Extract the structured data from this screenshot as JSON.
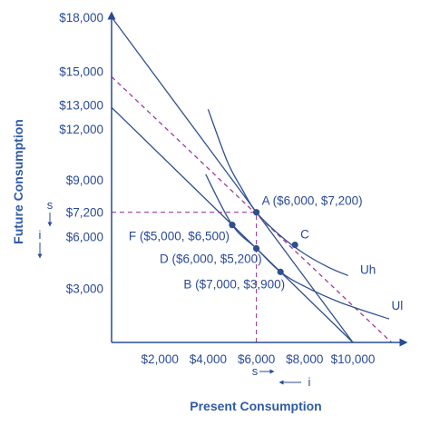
{
  "chart_data": {
    "type": "line",
    "xlabel": "Present Consumption",
    "ylabel": "Future Consumption",
    "xlim": [
      0,
      11600
    ],
    "ylim": [
      0,
      18800
    ],
    "x_tick_labels": [
      {
        "value": 2000,
        "label": "$2,000"
      },
      {
        "value": 4000,
        "label": "$4,000"
      },
      {
        "value": 6000,
        "label": "$6,000"
      },
      {
        "value": 8000,
        "label": "$8,000"
      },
      {
        "value": 10000,
        "label": "$10,000"
      }
    ],
    "y_tick_labels": [
      {
        "value": 3000,
        "label": "$3,000"
      },
      {
        "value": 6000,
        "label": "$6,000"
      },
      {
        "value": 7200,
        "label": "$7,200"
      },
      {
        "value": 9000,
        "label": "$9,000"
      },
      {
        "value": 12000,
        "label": "$12,000"
      },
      {
        "value": 13000,
        "label": "$13,000"
      },
      {
        "value": 15000,
        "label": "$15,000"
      },
      {
        "value": 18000,
        "label": "$18,000"
      }
    ],
    "budget_lines": [
      {
        "x": [
          0,
          10000
        ],
        "y": [
          18000,
          0
        ],
        "style": "solid"
      },
      {
        "x": [
          0,
          10000
        ],
        "y": [
          13000,
          0
        ],
        "style": "solid"
      },
      {
        "x": [
          0,
          11600
        ],
        "y": [
          14700,
          0
        ],
        "style": "dashed"
      }
    ],
    "indifference_curves": [
      {
        "name": "Uh",
        "points": [
          [
            4000,
            12900
          ],
          [
            4800,
            10000
          ],
          [
            5400,
            8500
          ],
          [
            6000,
            7200
          ],
          [
            7000,
            5900
          ],
          [
            8000,
            4900
          ],
          [
            9000,
            4150
          ],
          [
            9800,
            3700
          ]
        ]
      },
      {
        "name": "Ul",
        "points": [
          [
            3900,
            9300
          ],
          [
            5000,
            6500
          ],
          [
            6000,
            5200
          ],
          [
            7000,
            3900
          ],
          [
            8000,
            3100
          ],
          [
            9500,
            2200
          ],
          [
            11500,
            1300
          ]
        ]
      }
    ],
    "guide_lines": [
      {
        "x": [
          0,
          6000
        ],
        "y": [
          7200,
          7200
        ]
      },
      {
        "x": [
          6000,
          6000
        ],
        "y": [
          0,
          7200
        ]
      }
    ],
    "points": [
      {
        "x": 6000,
        "y": 7200,
        "label": "A ($6,000, $7,200)"
      },
      {
        "x": 7600,
        "y": 5400,
        "label": "C"
      },
      {
        "x": 5000,
        "y": 6500,
        "label": "F ($5,000, $6,500)"
      },
      {
        "x": 6000,
        "y": 5200,
        "label": "D ($6,000, $5,200)"
      },
      {
        "x": 7000,
        "y": 3900,
        "label": "B ($7,000, $3,900)"
      }
    ],
    "curve_labels": [
      {
        "text": "Uh",
        "x": 10300,
        "y": 3800
      },
      {
        "text": "Ul",
        "x": 11600,
        "y": 1800
      }
    ],
    "axis_notes": {
      "x_s": "s",
      "x_i": "i",
      "y_s": "s",
      "y_i": "i"
    },
    "colors": {
      "axis": "#2a4a96",
      "line": "#2f4f8f",
      "dashed": "#a03a9a",
      "point": "#2f4f8f",
      "text": "#2a4a96"
    }
  }
}
